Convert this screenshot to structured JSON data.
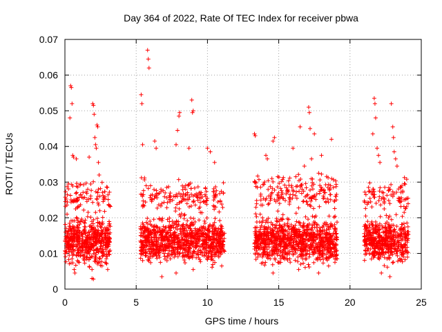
{
  "chart_data": {
    "type": "scatter",
    "title": "Day 364 of 2022, Rate Of TEC Index for receiver pbwa",
    "xlabel": "GPS time / hours",
    "ylabel": "ROTI / TECUs",
    "xlim": [
      0,
      25
    ],
    "ylim": [
      0,
      0.07
    ],
    "x_ticks": [
      0,
      5,
      10,
      15,
      20,
      25
    ],
    "y_ticks": [
      0,
      0.01,
      0.02,
      0.03,
      0.04,
      0.05,
      0.06,
      0.07
    ],
    "x_tick_labels": [
      "0",
      "5",
      "10",
      "15",
      "20",
      "25"
    ],
    "y_tick_labels": [
      "0",
      "0.01",
      "0.02",
      "0.03",
      "0.04",
      "0.05",
      "0.06",
      "0.07"
    ],
    "grid": true,
    "marker": "plus",
    "color": "#ff0000",
    "series": [
      {
        "points": [
          [
            0.0,
            0.0135
          ],
          [
            0.05,
            0.016
          ],
          [
            0.1,
            0.0115
          ],
          [
            0.15,
            0.021
          ],
          [
            0.2,
            0.0125
          ],
          [
            0.25,
            0.0295
          ],
          [
            0.3,
            0.0095
          ],
          [
            0.35,
            0.048
          ],
          [
            0.4,
            0.057
          ],
          [
            0.45,
            0.0565
          ],
          [
            0.5,
            0.052
          ],
          [
            0.55,
            0.0375
          ],
          [
            0.6,
            0.037
          ],
          [
            0.65,
            0.0055
          ],
          [
            0.7,
            0.0045
          ],
          [
            0.75,
            0.0225
          ],
          [
            0.8,
            0.0365
          ],
          [
            0.85,
            0.0175
          ],
          [
            0.9,
            0.0135
          ],
          [
            0.95,
            0.0095
          ],
          [
            1.0,
            0.015
          ],
          [
            1.1,
            0.0265
          ],
          [
            1.2,
            0.0135
          ],
          [
            1.3,
            0.0085
          ],
          [
            1.4,
            0.0185
          ],
          [
            1.5,
            0.0115
          ],
          [
            1.6,
            0.028
          ],
          [
            1.7,
            0.037
          ],
          [
            1.8,
            0.0125
          ],
          [
            1.9,
            0.0055
          ],
          [
            1.95,
            0.052
          ],
          [
            2.0,
            0.0515
          ],
          [
            2.05,
            0.049
          ],
          [
            2.1,
            0.0425
          ],
          [
            2.15,
            0.0405
          ],
          [
            2.2,
            0.0395
          ],
          [
            2.25,
            0.046
          ],
          [
            2.3,
            0.0455
          ],
          [
            2.35,
            0.0355
          ],
          [
            2.4,
            0.032
          ],
          [
            2.45,
            0.026
          ],
          [
            2.5,
            0.0175
          ],
          [
            2.6,
            0.0135
          ],
          [
            2.7,
            0.0105
          ],
          [
            2.8,
            0.0155
          ],
          [
            2.9,
            0.0085
          ],
          [
            3.0,
            0.0125
          ],
          [
            3.1,
            0.0145
          ],
          [
            1.9,
            0.003
          ],
          [
            2.0,
            0.0028
          ],
          [
            1.0,
            0.0075
          ],
          [
            0.5,
            0.0085
          ],
          [
            2.6,
            0.0065
          ],
          [
            3.0,
            0.0055
          ],
          [
            5.3,
            0.0135
          ],
          [
            5.35,
            0.0545
          ],
          [
            5.4,
            0.052
          ],
          [
            5.45,
            0.0405
          ],
          [
            5.5,
            0.0265
          ],
          [
            5.6,
            0.012
          ],
          [
            5.7,
            0.029
          ],
          [
            5.8,
            0.067
          ],
          [
            5.85,
            0.0645
          ],
          [
            5.9,
            0.062
          ],
          [
            6.0,
            0.0165
          ],
          [
            6.1,
            0.0125
          ],
          [
            6.2,
            0.0095
          ],
          [
            6.3,
            0.0415
          ],
          [
            6.4,
            0.0395
          ],
          [
            6.5,
            0.0115
          ],
          [
            6.6,
            0.0145
          ],
          [
            6.7,
            0.0075
          ],
          [
            6.8,
            0.024
          ],
          [
            6.9,
            0.016
          ],
          [
            7.0,
            0.0125
          ],
          [
            7.2,
            0.0195
          ],
          [
            7.4,
            0.0085
          ],
          [
            7.6,
            0.0135
          ],
          [
            7.8,
            0.0405
          ],
          [
            7.9,
            0.0445
          ],
          [
            8.0,
            0.0485
          ],
          [
            8.05,
            0.0495
          ],
          [
            8.1,
            0.017
          ],
          [
            8.3,
            0.0115
          ],
          [
            8.5,
            0.0265
          ],
          [
            8.7,
            0.0395
          ],
          [
            8.9,
            0.053
          ],
          [
            8.95,
            0.0495
          ],
          [
            9.0,
            0.05
          ],
          [
            9.1,
            0.0145
          ],
          [
            9.3,
            0.0105
          ],
          [
            9.5,
            0.0215
          ],
          [
            9.7,
            0.0155
          ],
          [
            9.9,
            0.0125
          ],
          [
            10.0,
            0.0395
          ],
          [
            10.1,
            0.0175
          ],
          [
            10.2,
            0.0385
          ],
          [
            10.3,
            0.0085
          ],
          [
            10.5,
            0.0355
          ],
          [
            10.6,
            0.0265
          ],
          [
            10.7,
            0.0135
          ],
          [
            10.8,
            0.0105
          ],
          [
            10.9,
            0.0155
          ],
          [
            11.0,
            0.0065
          ],
          [
            11.1,
            0.0125
          ],
          [
            6.8,
            0.0035
          ],
          [
            7.8,
            0.0045
          ],
          [
            9.0,
            0.0055
          ],
          [
            13.3,
            0.0435
          ],
          [
            13.35,
            0.043
          ],
          [
            13.4,
            0.0145
          ],
          [
            13.5,
            0.0285
          ],
          [
            13.6,
            0.0115
          ],
          [
            13.7,
            0.021
          ],
          [
            13.8,
            0.0135
          ],
          [
            13.9,
            0.0095
          ],
          [
            14.0,
            0.0175
          ],
          [
            14.1,
            0.0375
          ],
          [
            14.2,
            0.0365
          ],
          [
            14.3,
            0.0125
          ],
          [
            14.4,
            0.0085
          ],
          [
            14.5,
            0.0155
          ],
          [
            14.6,
            0.0415
          ],
          [
            14.7,
            0.0425
          ],
          [
            14.8,
            0.0245
          ],
          [
            14.9,
            0.0135
          ],
          [
            15.0,
            0.0105
          ],
          [
            15.2,
            0.0195
          ],
          [
            15.4,
            0.0145
          ],
          [
            15.6,
            0.0115
          ],
          [
            15.8,
            0.0265
          ],
          [
            16.0,
            0.0395
          ],
          [
            16.2,
            0.0315
          ],
          [
            16.3,
            0.0165
          ],
          [
            16.5,
            0.0455
          ],
          [
            16.6,
            0.0125
          ],
          [
            16.8,
            0.0345
          ],
          [
            17.0,
            0.0175
          ],
          [
            17.1,
            0.051
          ],
          [
            17.15,
            0.0495
          ],
          [
            17.2,
            0.045
          ],
          [
            17.3,
            0.0365
          ],
          [
            17.4,
            0.0135
          ],
          [
            17.5,
            0.0435
          ],
          [
            17.6,
            0.0205
          ],
          [
            17.7,
            0.0115
          ],
          [
            17.8,
            0.0325
          ],
          [
            17.9,
            0.0155
          ],
          [
            18.0,
            0.0375
          ],
          [
            18.1,
            0.0095
          ],
          [
            18.2,
            0.0185
          ],
          [
            18.4,
            0.0135
          ],
          [
            18.6,
            0.0265
          ],
          [
            18.7,
            0.042
          ],
          [
            18.8,
            0.0125
          ],
          [
            18.9,
            0.0105
          ],
          [
            19.0,
            0.0155
          ],
          [
            19.1,
            0.0085
          ],
          [
            14.6,
            0.0045
          ],
          [
            16.4,
            0.0055
          ],
          [
            17.8,
            0.0045
          ],
          [
            18.5,
            0.0065
          ],
          [
            21.0,
            0.0135
          ],
          [
            21.1,
            0.0205
          ],
          [
            21.2,
            0.0115
          ],
          [
            21.3,
            0.0285
          ],
          [
            21.4,
            0.0165
          ],
          [
            21.5,
            0.0125
          ],
          [
            21.6,
            0.0435
          ],
          [
            21.7,
            0.0535
          ],
          [
            21.75,
            0.052
          ],
          [
            21.8,
            0.048
          ],
          [
            21.9,
            0.0395
          ],
          [
            22.0,
            0.0375
          ],
          [
            22.1,
            0.0355
          ],
          [
            22.2,
            0.0145
          ],
          [
            22.3,
            0.0105
          ],
          [
            22.4,
            0.0225
          ],
          [
            22.5,
            0.0135
          ],
          [
            22.6,
            0.0085
          ],
          [
            22.7,
            0.0175
          ],
          [
            22.8,
            0.0095
          ],
          [
            22.9,
            0.052
          ],
          [
            23.0,
            0.0455
          ],
          [
            23.05,
            0.0425
          ],
          [
            23.1,
            0.0385
          ],
          [
            23.2,
            0.0365
          ],
          [
            23.3,
            0.0345
          ],
          [
            23.4,
            0.0255
          ],
          [
            23.5,
            0.0165
          ],
          [
            23.6,
            0.0125
          ],
          [
            23.7,
            0.0275
          ],
          [
            23.8,
            0.0215
          ],
          [
            23.9,
            0.0145
          ],
          [
            24.0,
            0.0105
          ],
          [
            24.05,
            0.0155
          ],
          [
            22.2,
            0.0045
          ],
          [
            22.8,
            0.0035
          ]
        ]
      }
    ],
    "dense_bands": [
      {
        "x_start": 0.0,
        "x_end": 3.2,
        "y_center": 0.0135,
        "y_spread": 0.0085,
        "count": 520
      },
      {
        "x_start": 5.3,
        "x_end": 11.2,
        "y_center": 0.0135,
        "y_spread": 0.0085,
        "count": 900
      },
      {
        "x_start": 13.3,
        "x_end": 19.1,
        "y_center": 0.0135,
        "y_spread": 0.0085,
        "count": 900
      },
      {
        "x_start": 21.0,
        "x_end": 24.1,
        "y_center": 0.0135,
        "y_spread": 0.0085,
        "count": 480
      },
      {
        "x_start": 0.0,
        "x_end": 3.2,
        "y_center": 0.026,
        "y_spread": 0.006,
        "count": 90
      },
      {
        "x_start": 5.3,
        "x_end": 11.2,
        "y_center": 0.026,
        "y_spread": 0.006,
        "count": 160
      },
      {
        "x_start": 13.3,
        "x_end": 19.1,
        "y_center": 0.027,
        "y_spread": 0.007,
        "count": 180
      },
      {
        "x_start": 21.0,
        "x_end": 24.1,
        "y_center": 0.026,
        "y_spread": 0.006,
        "count": 80
      }
    ]
  }
}
